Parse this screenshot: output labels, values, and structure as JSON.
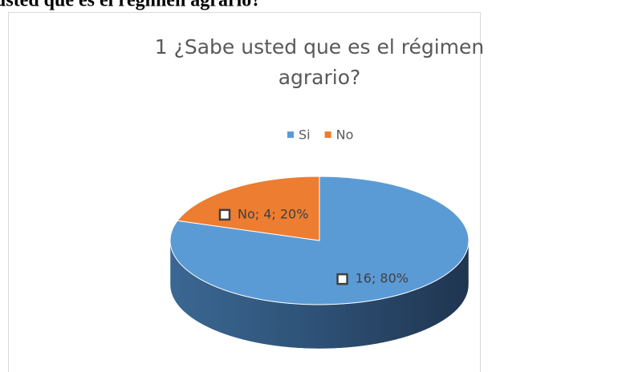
{
  "header": {
    "text": "usted  que es el régimen agrario?"
  },
  "chart_data": {
    "type": "pie3d",
    "title": "1 ¿Sabe usted  que es el régimen agrario?",
    "categories": [
      "Si",
      "No"
    ],
    "series": [
      {
        "name": "Si",
        "color": "#5b9bd5"
      },
      {
        "name": "No",
        "color": "#ed7d31"
      }
    ],
    "values": [
      16,
      4
    ],
    "value_labels": [
      "16; 80%",
      "No; 4; 20%"
    ],
    "legend": "top"
  }
}
